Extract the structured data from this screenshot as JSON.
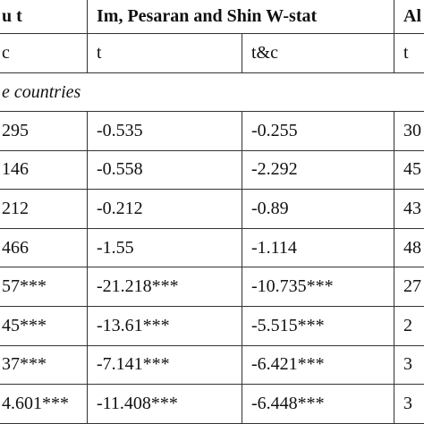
{
  "table": {
    "header": [
      "u t",
      "Im, Pesaran and Shin W-stat",
      "Al"
    ],
    "subheader": [
      "c",
      "t",
      "t&c",
      "t"
    ],
    "section": "e countries",
    "rows": [
      [
        "295",
        "-0.535",
        "-0.255",
        "30"
      ],
      [
        "146",
        "-0.558",
        "-2.292",
        "45"
      ],
      [
        "212",
        "-0.212",
        "-0.89",
        "43"
      ],
      [
        "466",
        "-1.55",
        "-1.114",
        "48"
      ],
      [
        "57***",
        "-21.218***",
        "-10.735***",
        "27"
      ],
      [
        "45***",
        "-13.61***",
        "-5.515***",
        "2"
      ],
      [
        "37***",
        "-7.141***",
        "-6.421***",
        "3"
      ],
      [
        "4.601***",
        "-11.408***",
        "-6.448***",
        "3"
      ]
    ]
  }
}
